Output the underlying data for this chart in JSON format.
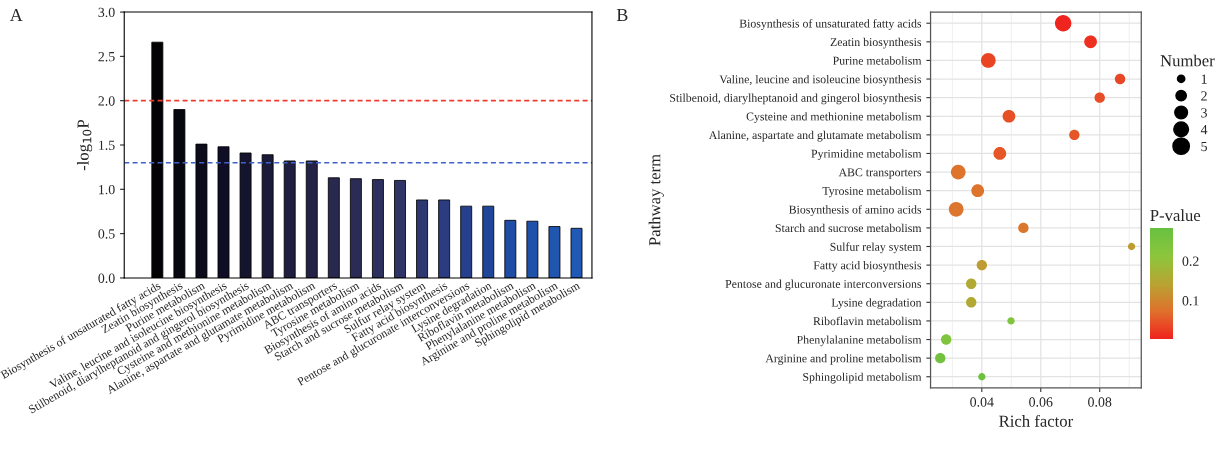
{
  "chart_data": [
    {
      "type": "bar",
      "annotations": [
        "A"
      ],
      "ylabel": "-log$_{10}$P",
      "categories": [
        "Biosynthesis of unsaturated fatty acids",
        "Zeatin biosynthesis",
        "Purine metabolism",
        "Valine, leucine and isoleucine biosynthesis",
        "Stilbenoid, diarylheptanoid and gingerol biosynthesis",
        "Cysteine and methionine metabolism",
        "Alanine, aspartate and glutamate metabolism",
        "Pyrimidine metabolism",
        "ABC transporters",
        "Tyrosine metabolism",
        "Biosynthesis of amino acids",
        "Starch and sucrose metabolism",
        "Sulfur relay system",
        "Fatty acid biosynthesis",
        "Pentose and glucuronate interconversions",
        "Lysine degradation",
        "Riboflavin metabolism",
        "Phenylalanine metabolism",
        "Arginine and proline metabolism",
        "Sphingolipid metabolism"
      ],
      "values": [
        2.66,
        1.9,
        1.51,
        1.48,
        1.41,
        1.39,
        1.32,
        1.32,
        1.13,
        1.12,
        1.11,
        1.1,
        0.88,
        0.88,
        0.81,
        0.81,
        0.65,
        0.64,
        0.58,
        0.56
      ],
      "colors": [
        "#030305",
        "#07070f",
        "#0b0b1c",
        "#0f0e26",
        "#15142e",
        "#1b1a38",
        "#1f1e40",
        "#232246",
        "#29284e",
        "#2b2c56",
        "#2d305e",
        "#2e3466",
        "#2d3872",
        "#2b3c80",
        "#26408e",
        "#20469a",
        "#1f4ca4",
        "#1f51aa",
        "#2055b0",
        "#2159b6"
      ],
      "ylim": [
        0,
        3
      ],
      "yticks": [
        {
          "value": 0,
          "label": "0.0"
        },
        {
          "value": 0.5,
          "label": "0.5"
        },
        {
          "value": 1,
          "label": "1.0"
        },
        {
          "value": 1.5,
          "label": "1.5"
        },
        {
          "value": 2,
          "label": "2.0"
        },
        {
          "value": 2.5,
          "label": "2.5"
        },
        {
          "value": 3,
          "label": "3.0"
        }
      ],
      "ref_lines": [
        {
          "axis": "y",
          "value": 2.0,
          "color": "#f03c30",
          "line_style": "dashed"
        },
        {
          "axis": "y",
          "value": 1.3,
          "color": "#3f62c8",
          "line_style": "dashed"
        }
      ]
    },
    {
      "type": "bubble",
      "orientation": "horizontal",
      "annotations": [
        "B"
      ],
      "xlabel": "Rich factor",
      "ylabel": "Pathway term",
      "legend_title": "Number",
      "clabel": "P-value",
      "categories": [
        "Biosynthesis of unsaturated fatty acids",
        "Zeatin biosynthesis",
        "Purine metabolism",
        "Valine, leucine and isoleucine biosynthesis",
        "Stilbenoid, diarylheptanoid and gingerol biosynthesis",
        "Cysteine and methionine metabolism",
        "Alanine, aspartate and glutamate metabolism",
        "Pyrimidine metabolism",
        "ABC transporters",
        "Tyrosine metabolism",
        "Biosynthesis of amino acids",
        "Starch and sucrose metabolism",
        "Sulfur relay system",
        "Fatty acid biosynthesis",
        "Pentose and glucuronate interconversions",
        "Lysine degradation",
        "Riboflavin metabolism",
        "Phenylalanine metabolism",
        "Arginine and proline metabolism",
        "Sphingolipid metabolism"
      ],
      "values": [
        0.0676,
        0.0769,
        0.0422,
        0.0869,
        0.08,
        0.0492,
        0.0714,
        0.0461,
        0.032,
        0.0386,
        0.0313,
        0.0541,
        0.0908,
        0.04,
        0.0364,
        0.0364,
        0.0499,
        0.0279,
        0.0259,
        0.04
      ],
      "sizes": [
        5,
        3,
        4,
        2,
        2,
        3,
        2,
        3,
        4,
        3,
        4,
        2,
        1,
        2,
        2,
        2,
        1,
        2,
        2,
        1
      ],
      "size_legend": [
        1,
        2,
        3,
        4,
        5
      ],
      "cvalues": [
        0.002,
        0.013,
        0.031,
        0.033,
        0.039,
        0.041,
        0.048,
        0.048,
        0.074,
        0.075,
        0.077,
        0.079,
        0.13,
        0.13,
        0.15,
        0.15,
        0.23,
        0.23,
        0.26,
        0.27
      ],
      "clim": [
        0,
        0.28
      ],
      "cticks": [
        0.1,
        0.2
      ],
      "xlim": [
        0.0226,
        0.0941
      ],
      "xticks": [
        0.04,
        0.06,
        0.08
      ],
      "grid": true
    }
  ]
}
